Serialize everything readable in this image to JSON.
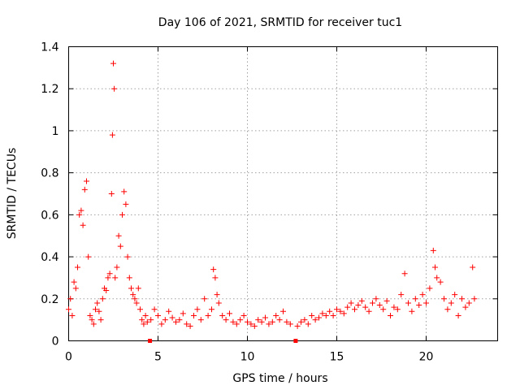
{
  "chart_data": {
    "type": "scatter",
    "title": "Day 106 of 2021, SRMTID for receiver tuc1",
    "xlabel": "GPS time / hours",
    "ylabel": "SRMTID / TECUs",
    "xlim": [
      0,
      24
    ],
    "ylim": [
      0,
      1.4
    ],
    "x_ticks": [
      0,
      5,
      10,
      15,
      20
    ],
    "x_tick_labels": [
      "0",
      "5",
      "10",
      "15",
      "20"
    ],
    "y_ticks": [
      0,
      0.2,
      0.4,
      0.6,
      0.8,
      1,
      1.2,
      1.4
    ],
    "y_tick_labels": [
      "0",
      "0.2",
      "0.4",
      "0.6",
      "0.8",
      "1",
      "1.2",
      "1.4"
    ],
    "grid": true,
    "marker": "plus",
    "color": "#ff0000",
    "gap_markers_x": [
      4.55,
      12.7
    ],
    "series": [
      {
        "name": "SRMTID",
        "x": [
          0.0,
          0.1,
          0.2,
          0.3,
          0.4,
          0.5,
          0.6,
          0.7,
          0.8,
          0.9,
          1.0,
          1.1,
          1.2,
          1.3,
          1.4,
          1.5,
          1.6,
          1.7,
          1.8,
          1.9,
          2.0,
          2.1,
          2.2,
          2.3,
          2.4,
          2.45,
          2.5,
          2.55,
          2.6,
          2.7,
          2.8,
          2.9,
          3.0,
          3.1,
          3.2,
          3.3,
          3.4,
          3.5,
          3.6,
          3.7,
          3.8,
          3.9,
          4.0,
          4.1,
          4.2,
          4.3,
          4.4,
          4.6,
          4.8,
          5.0,
          5.2,
          5.4,
          5.6,
          5.8,
          6.0,
          6.2,
          6.4,
          6.6,
          6.8,
          7.0,
          7.2,
          7.4,
          7.6,
          7.8,
          8.0,
          8.1,
          8.2,
          8.3,
          8.4,
          8.6,
          8.8,
          9.0,
          9.2,
          9.4,
          9.6,
          9.8,
          10.0,
          10.2,
          10.4,
          10.6,
          10.8,
          11.0,
          11.2,
          11.4,
          11.6,
          11.8,
          12.0,
          12.2,
          12.4,
          12.8,
          13.0,
          13.2,
          13.4,
          13.6,
          13.8,
          14.0,
          14.2,
          14.4,
          14.6,
          14.8,
          15.0,
          15.2,
          15.4,
          15.6,
          15.8,
          16.0,
          16.2,
          16.4,
          16.6,
          16.8,
          17.0,
          17.2,
          17.4,
          17.6,
          17.8,
          18.0,
          18.2,
          18.4,
          18.6,
          18.8,
          19.0,
          19.2,
          19.4,
          19.6,
          19.8,
          20.0,
          20.2,
          20.4,
          20.5,
          20.6,
          20.8,
          21.0,
          21.2,
          21.4,
          21.6,
          21.8,
          22.0,
          22.2,
          22.4,
          22.6,
          22.7
        ],
        "y": [
          0.15,
          0.2,
          0.12,
          0.28,
          0.25,
          0.35,
          0.6,
          0.62,
          0.55,
          0.72,
          0.76,
          0.4,
          0.12,
          0.1,
          0.08,
          0.15,
          0.18,
          0.14,
          0.1,
          0.2,
          0.25,
          0.24,
          0.3,
          0.32,
          0.7,
          0.98,
          1.32,
          1.2,
          0.3,
          0.35,
          0.5,
          0.45,
          0.6,
          0.71,
          0.65,
          0.4,
          0.3,
          0.25,
          0.22,
          0.2,
          0.18,
          0.25,
          0.15,
          0.1,
          0.08,
          0.12,
          0.09,
          0.1,
          0.15,
          0.12,
          0.08,
          0.1,
          0.14,
          0.11,
          0.09,
          0.1,
          0.13,
          0.08,
          0.07,
          0.12,
          0.15,
          0.1,
          0.2,
          0.12,
          0.15,
          0.34,
          0.3,
          0.22,
          0.18,
          0.12,
          0.1,
          0.13,
          0.09,
          0.08,
          0.1,
          0.12,
          0.09,
          0.08,
          0.07,
          0.1,
          0.09,
          0.11,
          0.08,
          0.09,
          0.12,
          0.1,
          0.14,
          0.09,
          0.08,
          0.07,
          0.09,
          0.1,
          0.08,
          0.12,
          0.1,
          0.11,
          0.13,
          0.12,
          0.14,
          0.12,
          0.15,
          0.14,
          0.13,
          0.16,
          0.18,
          0.15,
          0.17,
          0.19,
          0.16,
          0.14,
          0.18,
          0.2,
          0.17,
          0.15,
          0.19,
          0.12,
          0.16,
          0.15,
          0.22,
          0.32,
          0.18,
          0.14,
          0.2,
          0.17,
          0.22,
          0.18,
          0.25,
          0.43,
          0.35,
          0.3,
          0.28,
          0.2,
          0.15,
          0.18,
          0.22,
          0.12,
          0.2,
          0.16,
          0.18,
          0.35,
          0.2
        ]
      }
    ]
  }
}
